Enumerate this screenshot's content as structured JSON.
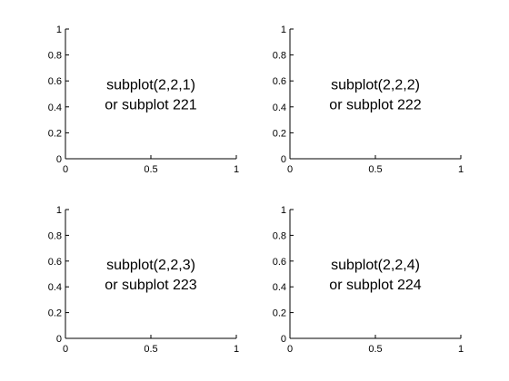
{
  "chart_data": [
    {
      "type": "line",
      "xlim": [
        0,
        1
      ],
      "ylim": [
        0,
        1
      ],
      "xticks": [
        0,
        0.5,
        1
      ],
      "yticks": [
        0,
        0.2,
        0.4,
        0.6,
        0.8,
        1
      ],
      "annotations": [
        "subplot(2,2,1)",
        "or subplot 221"
      ]
    },
    {
      "type": "line",
      "xlim": [
        0,
        1
      ],
      "ylim": [
        0,
        1
      ],
      "xticks": [
        0,
        0.5,
        1
      ],
      "yticks": [
        0,
        0.2,
        0.4,
        0.6,
        0.8,
        1
      ],
      "annotations": [
        "subplot(2,2,2)",
        "or subplot 222"
      ]
    },
    {
      "type": "line",
      "xlim": [
        0,
        1
      ],
      "ylim": [
        0,
        1
      ],
      "xticks": [
        0,
        0.5,
        1
      ],
      "yticks": [
        0,
        0.2,
        0.4,
        0.6,
        0.8,
        1
      ],
      "annotations": [
        "subplot(2,2,3)",
        "or subplot 223"
      ]
    },
    {
      "type": "line",
      "xlim": [
        0,
        1
      ],
      "ylim": [
        0,
        1
      ],
      "xticks": [
        0,
        0.5,
        1
      ],
      "yticks": [
        0,
        0.2,
        0.4,
        0.6,
        0.8,
        1
      ],
      "annotations": [
        "subplot(2,2,4)",
        "or subplot 224"
      ]
    }
  ]
}
